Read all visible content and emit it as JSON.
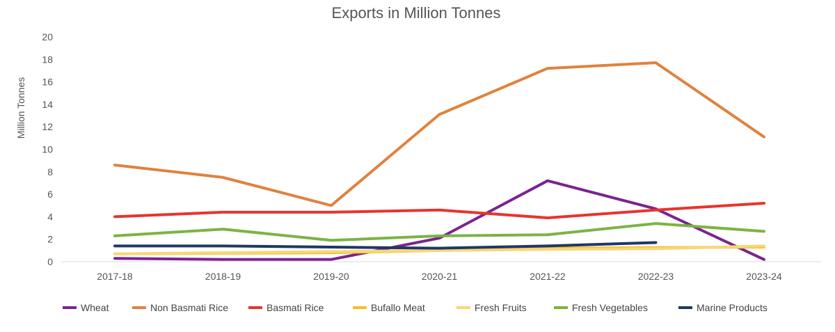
{
  "chart_data": {
    "type": "line",
    "title": "Exports in Million Tonnes",
    "xlabel": "",
    "ylabel": "Million Tonnes",
    "ylim": [
      0,
      20
    ],
    "yticks": [
      0,
      2,
      4,
      6,
      8,
      10,
      12,
      14,
      16,
      18,
      20
    ],
    "grid": false,
    "legend": "bottom",
    "categories": [
      "2017-18",
      "2018-19",
      "2019-20",
      "2020-21",
      "2021-22",
      "2022-23",
      "2023-24"
    ],
    "series": [
      {
        "name": "Wheat",
        "color": "#7B2390",
        "values": [
          0.3,
          0.2,
          0.2,
          2.1,
          7.2,
          4.7,
          0.2
        ]
      },
      {
        "name": "Non Basmati Rice",
        "color": "#E0823D",
        "values": [
          8.6,
          7.5,
          5.0,
          13.1,
          17.2,
          17.7,
          11.1
        ]
      },
      {
        "name": "Basmati Rice",
        "color": "#E8342C",
        "values": [
          4.0,
          4.4,
          4.4,
          4.6,
          3.9,
          4.6,
          5.2
        ]
      },
      {
        "name": "Bufallo Meat",
        "color": "#F5BE28",
        "values": [
          0.7,
          0.75,
          0.8,
          1.0,
          1.2,
          1.25,
          1.3
        ]
      },
      {
        "name": "Fresh Fruits",
        "color": "#F7D77A",
        "values": [
          0.7,
          0.8,
          0.9,
          1.0,
          1.1,
          1.15,
          1.4
        ]
      },
      {
        "name": "Fresh Vegetables",
        "color": "#7CB342",
        "values": [
          2.3,
          2.9,
          1.9,
          2.3,
          2.4,
          3.4,
          2.7
        ]
      },
      {
        "name": "Marine Products",
        "color": "#1F3864",
        "values": [
          1.4,
          1.4,
          1.3,
          1.2,
          1.4,
          1.7,
          null
        ]
      }
    ]
  }
}
